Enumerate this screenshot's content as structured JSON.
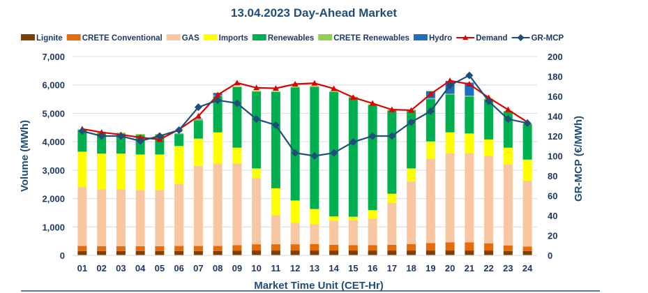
{
  "chart_data": {
    "type": "bar",
    "subtype": "stacked-bar-with-lines",
    "title": "13.04.2023  Day-Ahead Market",
    "xlabel": "Market Time Unit (CET-Hr)",
    "ylabel": "Volume (MWh)",
    "y2label": "GR-MCP (€/MWh)",
    "ylim": [
      0,
      7000
    ],
    "y2lim": [
      0,
      200
    ],
    "yticks": [
      0,
      1000,
      2000,
      3000,
      4000,
      5000,
      6000,
      7000
    ],
    "yticklabels": [
      "0",
      "1,000",
      "2,000",
      "3,000",
      "4,000",
      "5,000",
      "6,000",
      "7,000"
    ],
    "y2ticks": [
      0,
      20,
      40,
      60,
      80,
      100,
      120,
      140,
      160,
      180,
      200
    ],
    "y2ticklabels": [
      "0",
      "20",
      "40",
      "60",
      "80",
      "100",
      "120",
      "140",
      "160",
      "180",
      "200"
    ],
    "grid": true,
    "legend_position": "top",
    "categories": [
      "01",
      "02",
      "03",
      "04",
      "05",
      "06",
      "07",
      "08",
      "09",
      "10",
      "11",
      "12",
      "13",
      "14",
      "15",
      "16",
      "17",
      "18",
      "19",
      "20",
      "21",
      "22",
      "23",
      "24"
    ],
    "series": [
      {
        "name": "Lignite",
        "kind": "bar",
        "color": "#7f3f00",
        "axis": "left",
        "values": [
          150,
          150,
          150,
          150,
          150,
          150,
          150,
          150,
          160,
          170,
          170,
          170,
          170,
          170,
          170,
          170,
          170,
          170,
          170,
          170,
          170,
          170,
          150,
          150
        ]
      },
      {
        "name": "CRETE Conventional",
        "kind": "bar",
        "color": "#e46c0a",
        "axis": "left",
        "values": [
          180,
          170,
          170,
          170,
          170,
          180,
          180,
          180,
          200,
          220,
          220,
          220,
          230,
          200,
          190,
          190,
          200,
          230,
          260,
          290,
          290,
          250,
          200,
          160
        ]
      },
      {
        "name": "GAS",
        "kind": "bar",
        "color": "#f8c6a0",
        "axis": "left",
        "values": [
          2070,
          2000,
          2000,
          1980,
          1980,
          2190,
          2820,
          2900,
          2870,
          2330,
          1020,
          760,
          700,
          850,
          880,
          930,
          1480,
          2200,
          2970,
          3130,
          3140,
          3080,
          2850,
          2320
        ]
      },
      {
        "name": "Imports",
        "kind": "bar",
        "color": "#ffff00",
        "axis": "left",
        "values": [
          1250,
          1260,
          1260,
          1250,
          1250,
          1330,
          960,
          1100,
          560,
          340,
          950,
          780,
          530,
          150,
          120,
          300,
          320,
          460,
          610,
          740,
          690,
          580,
          590,
          740
        ]
      },
      {
        "name": "Renewables",
        "kind": "bar",
        "color": "#00b050",
        "axis": "left",
        "values": [
          760,
          720,
          710,
          690,
          690,
          420,
          640,
          1270,
          2130,
          2700,
          3390,
          3980,
          4300,
          4380,
          4200,
          3700,
          2930,
          2040,
          1490,
          1330,
          1300,
          1410,
          1270,
          1250
        ]
      },
      {
        "name": "CRETE Renewables",
        "kind": "bar",
        "color": "#92d050",
        "axis": "left",
        "values": [
          30,
          30,
          30,
          30,
          30,
          30,
          30,
          30,
          30,
          30,
          30,
          30,
          30,
          30,
          30,
          30,
          30,
          30,
          30,
          30,
          30,
          30,
          30,
          30
        ]
      },
      {
        "name": "Hydro",
        "kind": "bar",
        "color": "#1f6fc0",
        "axis": "left",
        "values": [
          0,
          0,
          0,
          0,
          0,
          0,
          20,
          90,
          0,
          0,
          0,
          0,
          0,
          0,
          0,
          0,
          0,
          0,
          250,
          450,
          460,
          0,
          0,
          0
        ]
      },
      {
        "name": "Demand",
        "kind": "line",
        "color": "#e00000",
        "marker": "triangle",
        "axis": "left",
        "values": [
          4450,
          4330,
          4250,
          4150,
          4080,
          4430,
          4900,
          5650,
          6070,
          5900,
          5880,
          6030,
          6060,
          5870,
          5560,
          5350,
          5130,
          5110,
          5680,
          6150,
          6030,
          5550,
          5130,
          4690
        ]
      },
      {
        "name": "GR-MCP",
        "kind": "line",
        "color": "#1f4e79",
        "marker": "diamond",
        "axis": "right",
        "values": [
          125,
          120,
          120,
          115,
          120,
          126,
          149,
          156,
          153,
          137,
          131,
          103,
          100,
          103,
          114,
          120,
          120,
          134,
          145,
          171,
          181,
          155,
          137,
          133
        ]
      }
    ]
  }
}
